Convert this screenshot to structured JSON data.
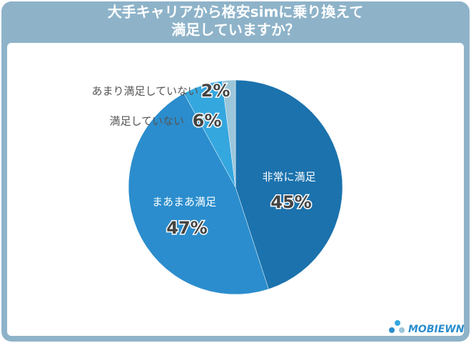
{
  "chart_data": {
    "type": "pie",
    "title": [
      "大手キャリアから格安simに乗り換えて",
      "満足していますか？"
    ],
    "categories": [
      "非常に満足",
      "まあまあ満足",
      "満足していない",
      "あまり満足していない"
    ],
    "values": [
      45,
      47,
      6,
      2
    ],
    "value_labels": [
      "45%",
      "47%",
      "6%",
      "2%"
    ],
    "colors": [
      "#1b72ad",
      "#2b8dcd",
      "#35a7df",
      "#9cc6da"
    ],
    "logo": "MOBIEWN"
  }
}
